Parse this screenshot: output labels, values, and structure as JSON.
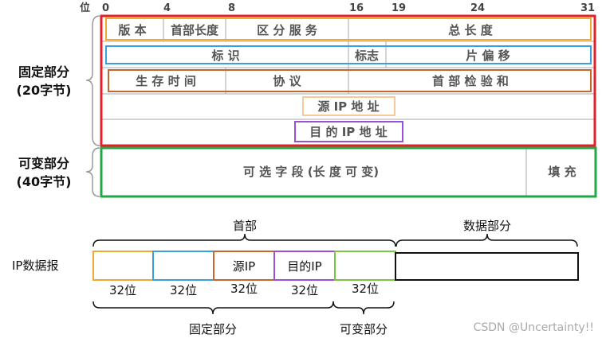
{
  "bit_axis": {
    "label": "位",
    "ticks": [
      "0",
      "4",
      "8",
      "16",
      "19",
      "24",
      "31"
    ]
  },
  "fixed_part": {
    "title": "固定部分",
    "size": "(20字节)"
  },
  "variable_part": {
    "title": "可变部分",
    "size": "(40字节)"
  },
  "header_fields": {
    "version": "版 本",
    "header_length": "首部长度",
    "ds": "区 分 服 务",
    "total_length": "总 长 度",
    "identification": "标 识",
    "flags": "标志",
    "fragment_offset": "片 偏 移",
    "ttl": "生 存 时 间",
    "protocol": "协 议",
    "checksum": "首 部 检 验 和",
    "src_ip": "源 IP 地 址",
    "dst_ip": "目 的 IP 地 址",
    "options": "可 选 字 段 (长 度 可 变)",
    "padding": "填 充"
  },
  "datagram": {
    "label": "IP数据报",
    "header": "首部",
    "data": "数据部分",
    "src": "源IP",
    "dst": "目的IP",
    "bits": [
      "32位",
      "32位",
      "32位",
      "32位",
      "32位"
    ],
    "fixed": "固定部分",
    "variable": "可变部分"
  },
  "colors": {
    "red": "#e3202a",
    "green": "#22a745",
    "orange": "#f0a830",
    "blue": "#3aa0dc",
    "brown": "#c8662a",
    "purple": "#9b4fd6",
    "light_orange": "#f5c99a"
  },
  "watermark": "CSDN @Uncertainty!!"
}
